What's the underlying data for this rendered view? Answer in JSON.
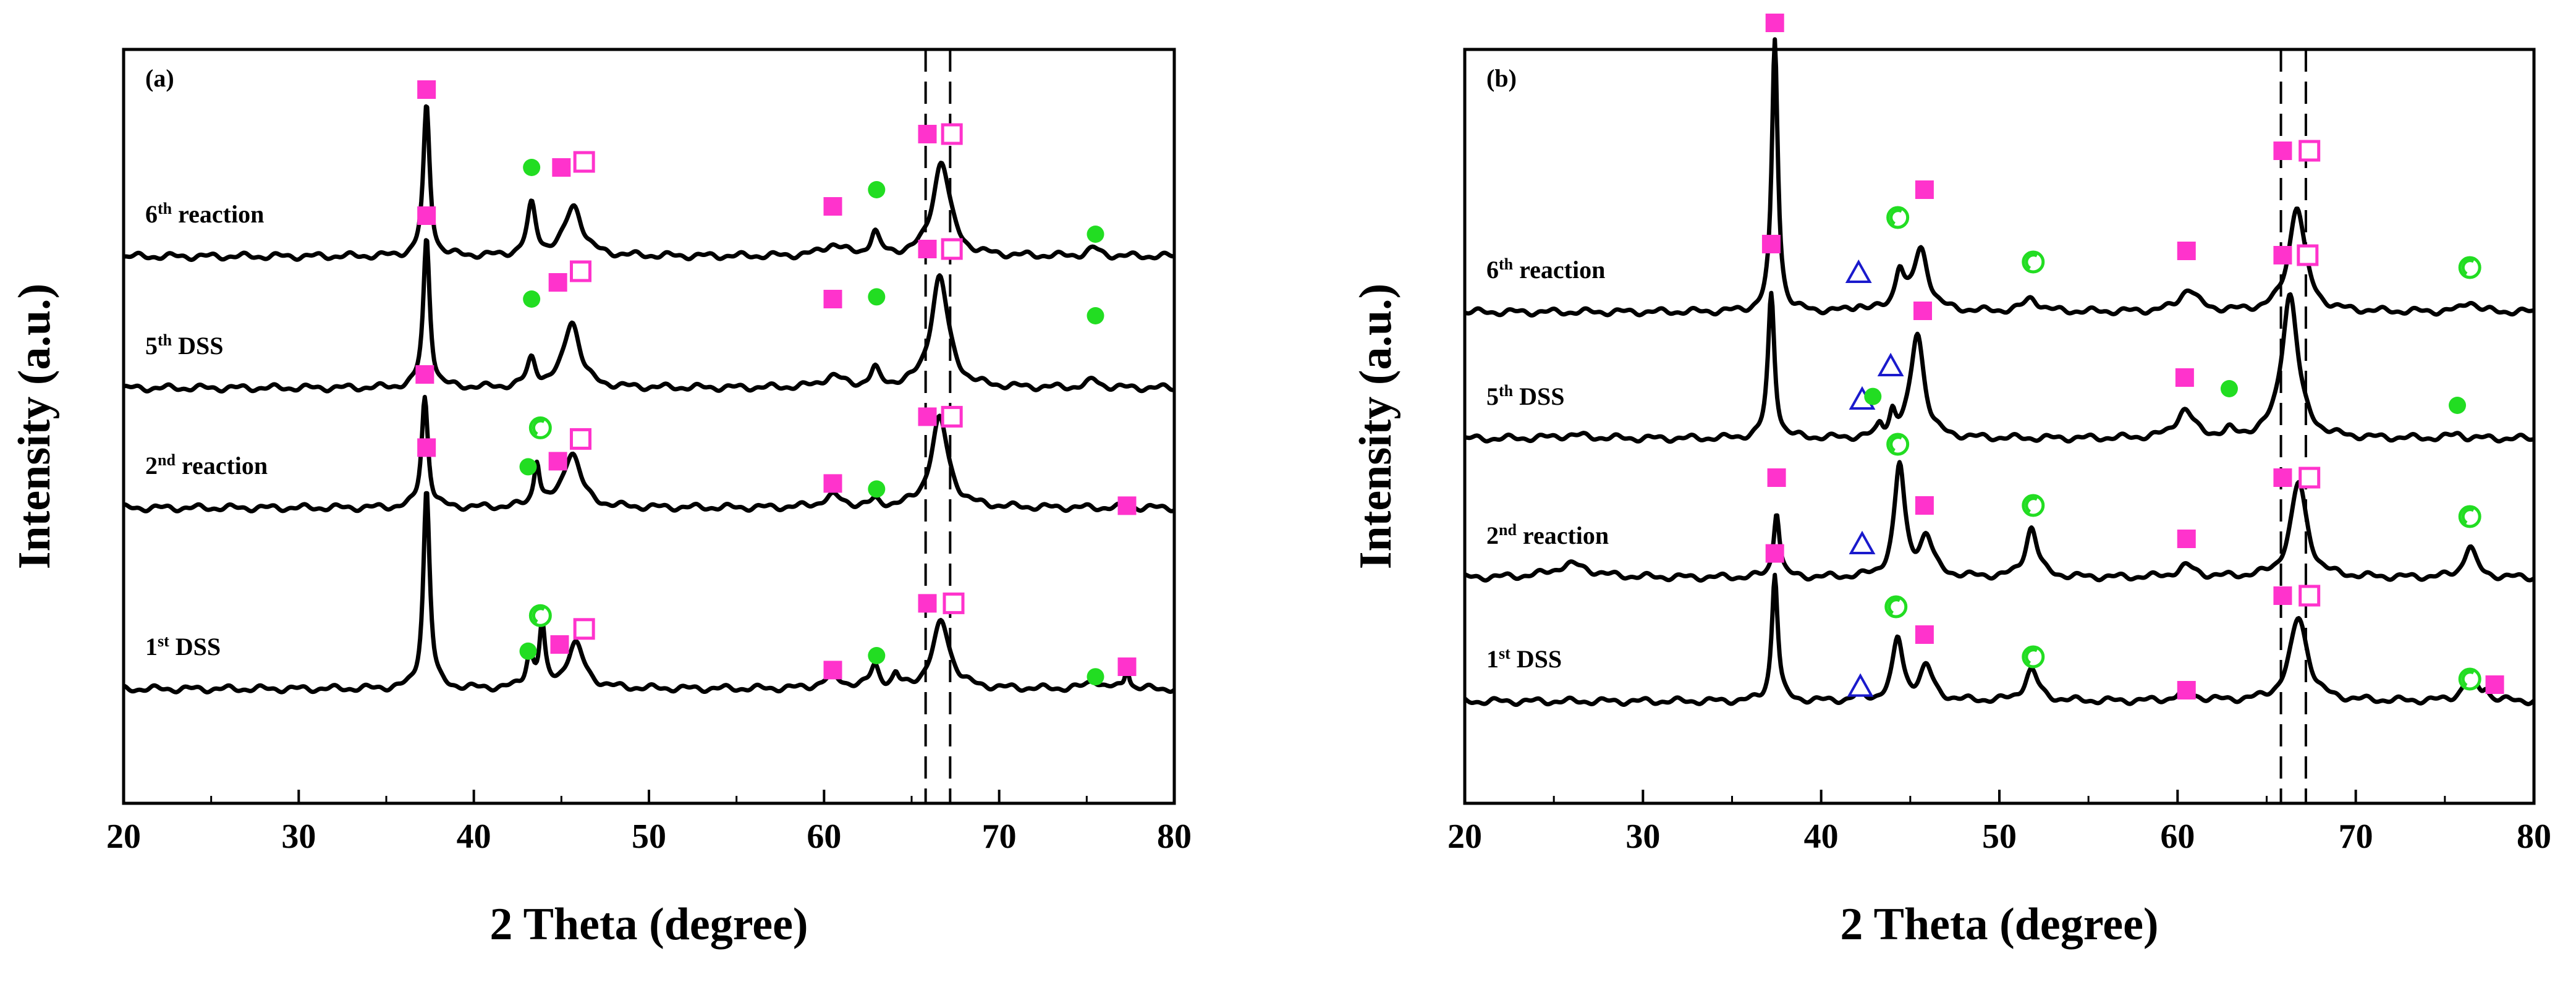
{
  "chart_data": [
    {
      "type": "line",
      "panel_label": "(a)",
      "xlabel": "2 Theta (degree)",
      "ylabel": "Intensity (a.u.)",
      "xlim": [
        20,
        80
      ],
      "xticks": [
        "20",
        "30",
        "40",
        "50",
        "60",
        "70",
        "80"
      ],
      "yticks": [],
      "grid": false,
      "reference_lines_x": [
        65.8,
        67.2
      ],
      "series": [
        {
          "name": "6th reaction",
          "label_base": "6",
          "label_sup": "th",
          "label_rest": " reaction",
          "baseline": 3.0,
          "peaks": [
            [
              37.3,
              1.35,
              0.22
            ],
            [
              43.3,
              0.45,
              0.3
            ],
            [
              45.7,
              0.45,
              0.6
            ],
            [
              60.5,
              0.1,
              0.7
            ],
            [
              62.9,
              0.2,
              0.3
            ],
            [
              66.7,
              0.85,
              0.6
            ],
            [
              75.4,
              0.07,
              0.4
            ]
          ],
          "markers": [
            [
              "filled-square",
              37.3,
              4.5
            ],
            [
              "filled-circle",
              43.3,
              3.8
            ],
            [
              "filled-square",
              45.0,
              3.8
            ],
            [
              "open-square",
              46.3,
              3.85
            ],
            [
              "filled-square",
              60.5,
              3.45
            ],
            [
              "filled-circle",
              63.0,
              3.6
            ],
            [
              "filled-square",
              65.9,
              4.1
            ],
            [
              "open-square",
              67.3,
              4.1
            ],
            [
              "filled-circle",
              75.5,
              3.2
            ]
          ]
        },
        {
          "name": "5th DSS",
          "label_base": "5",
          "label_sup": "th",
          "label_rest": " DSS",
          "baseline": 2.0,
          "peaks": [
            [
              37.3,
              1.35,
              0.22
            ],
            [
              43.3,
              0.25,
              0.3
            ],
            [
              45.6,
              0.6,
              0.55
            ],
            [
              60.5,
              0.1,
              0.7
            ],
            [
              62.9,
              0.15,
              0.3
            ],
            [
              66.6,
              1.0,
              0.6
            ],
            [
              75.4,
              0.07,
              0.4
            ]
          ],
          "markers": [
            [
              "filled-square",
              37.3,
              3.55
            ],
            [
              "filled-circle",
              43.3,
              2.8
            ],
            [
              "filled-square",
              44.8,
              2.95
            ],
            [
              "open-square",
              46.1,
              3.05
            ],
            [
              "filled-square",
              60.5,
              2.8
            ],
            [
              "filled-circle",
              63.0,
              2.82
            ],
            [
              "filled-square",
              65.9,
              3.25
            ],
            [
              "open-square",
              67.3,
              3.25
            ],
            [
              "filled-circle",
              75.5,
              2.65
            ]
          ]
        },
        {
          "name": "2nd reaction",
          "label_base": "2",
          "label_sup": "nd",
          "label_rest": " reaction",
          "baseline": 1.38,
          "peaks": [
            [
              37.2,
              1.0,
              0.22
            ],
            [
              43.6,
              0.4,
              0.2
            ],
            [
              45.6,
              0.5,
              0.6
            ],
            [
              60.5,
              0.1,
              0.7
            ],
            [
              62.9,
              0.05,
              0.3
            ],
            [
              66.6,
              0.8,
              0.6
            ],
            [
              77.3,
              0.05,
              0.15
            ]
          ],
          "markers": [
            [
              "filled-square",
              37.2,
              2.58
            ],
            [
              "filled-circle",
              43.1,
              1.75
            ],
            [
              "open-circle",
              43.8,
              2.1
            ],
            [
              "filled-square",
              44.8,
              1.8
            ],
            [
              "open-square",
              46.1,
              2.0
            ],
            [
              "filled-square",
              60.5,
              1.6
            ],
            [
              "filled-circle",
              63.0,
              1.55
            ],
            [
              "filled-square",
              65.9,
              2.2
            ],
            [
              "open-square",
              67.3,
              2.2
            ],
            [
              "filled-square",
              77.3,
              1.4
            ]
          ]
        },
        {
          "name": "1st DSS",
          "label_base": "1",
          "label_sup": "st",
          "label_rest": " DSS",
          "baseline": 0.0,
          "peaks": [
            [
              37.3,
              1.8,
              0.22
            ],
            [
              43.2,
              0.3,
              0.25
            ],
            [
              43.9,
              0.55,
              0.18
            ],
            [
              45.8,
              0.4,
              0.6
            ],
            [
              60.5,
              0.1,
              0.7
            ],
            [
              62.9,
              0.2,
              0.3
            ],
            [
              64.1,
              0.1,
              0.2
            ],
            [
              66.7,
              0.6,
              0.6
            ],
            [
              75.4,
              0.08,
              0.4
            ],
            [
              77.3,
              0.2,
              0.15
            ]
          ],
          "markers": [
            [
              "filled-square",
              37.3,
              2.17
            ],
            [
              "filled-circle",
              43.1,
              0.34
            ],
            [
              "open-circle",
              43.8,
              0.66
            ],
            [
              "filled-square",
              44.9,
              0.4
            ],
            [
              "open-square",
              46.3,
              0.54
            ],
            [
              "filled-square",
              60.5,
              0.17
            ],
            [
              "filled-circle",
              63.0,
              0.3
            ],
            [
              "filled-square",
              65.9,
              0.77
            ],
            [
              "open-square",
              67.4,
              0.77
            ],
            [
              "filled-circle",
              75.5,
              0.11
            ],
            [
              "filled-square",
              77.3,
              0.2
            ]
          ]
        }
      ]
    },
    {
      "type": "line",
      "panel_label": "(b)",
      "xlabel": "2 Theta (degree)",
      "ylabel": "Intensity (a.u.)",
      "xlim": [
        20,
        80
      ],
      "xticks": [
        "20",
        "30",
        "40",
        "50",
        "60",
        "70",
        "80"
      ],
      "yticks": [],
      "grid": false,
      "reference_lines_x": [
        65.8,
        67.2
      ],
      "series": [
        {
          "name": "6th reaction",
          "label_base": "6",
          "label_sup": "th",
          "label_rest": " reaction",
          "baseline": 3.0,
          "peaks": [
            [
              37.4,
              2.45,
              0.2
            ],
            [
              42.1,
              0.05,
              0.3
            ],
            [
              44.4,
              0.35,
              0.3
            ],
            [
              45.6,
              0.55,
              0.5
            ],
            [
              51.8,
              0.12,
              0.5
            ],
            [
              60.6,
              0.2,
              0.6
            ],
            [
              66.7,
              0.95,
              0.55
            ],
            [
              76.4,
              0.1,
              0.4
            ]
          ],
          "markers": [
            [
              "filled-square",
              37.4,
              5.6
            ],
            [
              "open-triangle",
              42.1,
              3.35
            ],
            [
              "open-circle",
              44.3,
              3.85
            ],
            [
              "filled-square",
              45.8,
              4.1
            ],
            [
              "open-circle",
              51.9,
              3.45
            ],
            [
              "filled-square",
              60.5,
              3.55
            ],
            [
              "filled-square",
              65.9,
              4.45
            ],
            [
              "open-square",
              67.4,
              4.45
            ],
            [
              "open-circle",
              76.4,
              3.4
            ]
          ]
        },
        {
          "name": "5th DSS",
          "label_base": "5",
          "label_sup": "th",
          "label_rest": " DSS",
          "baseline": 1.9,
          "peaks": [
            [
              26.0,
              0.03,
              1.2
            ],
            [
              37.2,
              1.3,
              0.22
            ],
            [
              43.3,
              0.1,
              0.2
            ],
            [
              44.0,
              0.2,
              0.2
            ],
            [
              45.4,
              0.95,
              0.45
            ],
            [
              60.4,
              0.25,
              0.6
            ],
            [
              62.9,
              0.05,
              0.3
            ],
            [
              66.3,
              1.3,
              0.55
            ],
            [
              75.7,
              0.04,
              0.4
            ]
          ],
          "markers": [
            [
              "filled-square",
              37.2,
              3.65
            ],
            [
              "open-triangle",
              42.3,
              2.25
            ],
            [
              "filled-circle",
              42.9,
              2.28
            ],
            [
              "open-triangle",
              43.9,
              2.55
            ],
            [
              "filled-square",
              45.7,
              3.05
            ],
            [
              "filled-square",
              60.4,
              2.45
            ],
            [
              "filled-circle",
              62.9,
              2.35
            ],
            [
              "filled-square",
              65.9,
              3.55
            ],
            [
              "open-square",
              67.3,
              3.55
            ],
            [
              "filled-circle",
              75.7,
              2.2
            ]
          ]
        },
        {
          "name": "2nd reaction",
          "label_base": "2",
          "label_sup": "nd",
          "label_rest": " reaction",
          "baseline": 0.95,
          "peaks": [
            [
              26.0,
              0.12,
              1.2
            ],
            [
              37.5,
              0.6,
              0.2
            ],
            [
              44.4,
              1.0,
              0.35
            ],
            [
              45.9,
              0.35,
              0.45
            ],
            [
              51.8,
              0.45,
              0.4
            ],
            [
              60.5,
              0.1,
              0.6
            ],
            [
              66.8,
              0.85,
              0.55
            ],
            [
              76.4,
              0.28,
              0.4
            ]
          ],
          "markers": [
            [
              "filled-square",
              37.5,
              1.85
            ],
            [
              "open-triangle",
              42.3,
              1.25
            ],
            [
              "open-circle",
              44.3,
              2.15
            ],
            [
              "filled-square",
              45.8,
              1.6
            ],
            [
              "open-circle",
              51.9,
              1.6
            ],
            [
              "filled-square",
              60.5,
              1.3
            ],
            [
              "filled-square",
              65.9,
              1.85
            ],
            [
              "open-square",
              67.4,
              1.85
            ],
            [
              "open-circle",
              76.4,
              1.5
            ]
          ]
        },
        {
          "name": "1st DSS",
          "label_base": "1",
          "label_sup": "st",
          "label_rest": " DSS",
          "baseline": 0.0,
          "peaks": [
            [
              37.4,
              1.15,
              0.2
            ],
            [
              42.1,
              0.05,
              0.3
            ],
            [
              44.3,
              0.55,
              0.35
            ],
            [
              45.9,
              0.3,
              0.45
            ],
            [
              51.8,
              0.28,
              0.45
            ],
            [
              60.5,
              0.08,
              0.6
            ],
            [
              66.8,
              0.75,
              0.6
            ],
            [
              76.4,
              0.22,
              0.45
            ],
            [
              77.3,
              0.08,
              0.2
            ]
          ],
          "markers": [
            [
              "filled-square",
              37.4,
              1.33
            ],
            [
              "open-triangle",
              42.2,
              0.13
            ],
            [
              "open-circle",
              44.2,
              0.85
            ],
            [
              "filled-square",
              45.8,
              0.6
            ],
            [
              "open-circle",
              51.9,
              0.4
            ],
            [
              "filled-square",
              60.5,
              0.1
            ],
            [
              "filled-square",
              65.9,
              0.95
            ],
            [
              "open-square",
              67.4,
              0.95
            ],
            [
              "open-circle",
              76.4,
              0.2
            ],
            [
              "filled-square",
              77.8,
              0.15
            ]
          ]
        }
      ]
    }
  ],
  "colors": {
    "axis": "#000000",
    "curve": "#000000",
    "square": "#ff33cc",
    "circle": "#22dd22",
    "triangle": "#1a1acc"
  }
}
